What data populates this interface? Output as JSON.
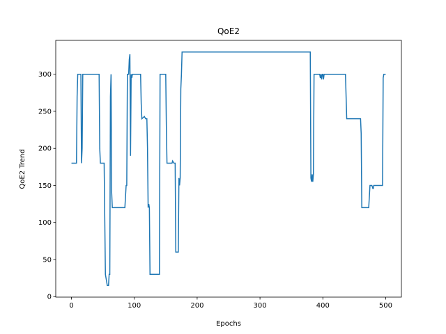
{
  "chart_data": {
    "type": "line",
    "title": "QoE2",
    "xlabel": "Epochs",
    "ylabel": "QoE2 Trend",
    "x": [
      0,
      5,
      8,
      9,
      10,
      14,
      15,
      16,
      17,
      18,
      20,
      44,
      45,
      46,
      52,
      54,
      56,
      57,
      59,
      60,
      61,
      62,
      63,
      64,
      65,
      70,
      85,
      87,
      88,
      89,
      91,
      92,
      93,
      94,
      95,
      96,
      97,
      110,
      111,
      112,
      116,
      118,
      120,
      121,
      122,
      123,
      124,
      125,
      140,
      141,
      150,
      151,
      152,
      160,
      161,
      163,
      165,
      166,
      170,
      171,
      172,
      173,
      174,
      175,
      176,
      380,
      381,
      382,
      383,
      384,
      385,
      386,
      395,
      396,
      397,
      398,
      399,
      400,
      401,
      402,
      425,
      436,
      437,
      438,
      460,
      461,
      462,
      473,
      475,
      478,
      480,
      481,
      495,
      496,
      497,
      500
    ],
    "series": [
      {
        "name": "QoE2",
        "color": "#1f77b4",
        "values": [
          180,
          180,
          180,
          270,
          300,
          300,
          300,
          180,
          200,
          300,
          300,
          300,
          200,
          180,
          180,
          30,
          20,
          15,
          15,
          30,
          30,
          270,
          300,
          140,
          120,
          120,
          120,
          150,
          150,
          300,
          300,
          320,
          327,
          190,
          300,
          295,
          300,
          300,
          260,
          240,
          243,
          240,
          240,
          200,
          120,
          125,
          120,
          30,
          30,
          300,
          300,
          230,
          180,
          180,
          183,
          180,
          180,
          60,
          60,
          160,
          150,
          160,
          280,
          300,
          330,
          330,
          160,
          155,
          165,
          155,
          165,
          300,
          300,
          295,
          300,
          293,
          300,
          300,
          293,
          300,
          300,
          300,
          270,
          240,
          240,
          220,
          120,
          120,
          150,
          150,
          145,
          150,
          150,
          295,
          300,
          300
        ]
      }
    ],
    "xlim": [
      -25,
      525
    ],
    "ylim": [
      -0.75,
      345.75
    ],
    "xticks": [
      0,
      100,
      200,
      300,
      400,
      500
    ],
    "yticks": [
      0,
      50,
      100,
      150,
      200,
      250,
      300
    ]
  }
}
